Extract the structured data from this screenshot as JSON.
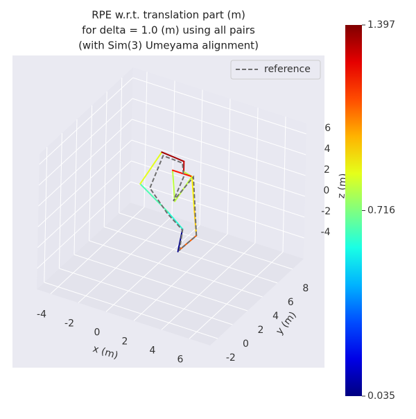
{
  "chart_data": {
    "type": "line3d",
    "title": [
      "RPE w.r.t. translation part (m)",
      "for delta = 1.0 (m) using all pairs",
      "(with Sim(3) Umeyama alignment)"
    ],
    "xlabel": "x (m)",
    "ylabel": "y (m)",
    "zlabel": "z (m)",
    "xlim": [
      -5,
      7.5
    ],
    "ylim": [
      -3,
      9.5
    ],
    "zlim": [
      -6,
      7
    ],
    "xticks": [
      -4,
      -2,
      0,
      2,
      4,
      6
    ],
    "yticks": [
      -2,
      0,
      2,
      4,
      6,
      8
    ],
    "zticks": [
      -4,
      -2,
      0,
      2,
      4,
      6
    ],
    "grid": true,
    "legend": "upper right",
    "series": [
      {
        "name": "reference",
        "color": "#6e6e6e",
        "style": "dashed",
        "x": [
          2.0,
          2.2,
          1.1,
          -0.2,
          0.7,
          2.1,
          2.2,
          1.5,
          2.9,
          3.2,
          2.0
        ],
        "y": [
          3,
          3,
          3,
          3,
          3,
          3,
          3,
          3,
          3,
          3,
          3
        ],
        "z": [
          -3.3,
          -1.2,
          -0.1,
          1.8,
          5.3,
          5.2,
          3.9,
          1.3,
          4.2,
          -1.3,
          -3.2
        ]
      },
      {
        "style": "solid",
        "x": [
          1.9,
          2.2,
          1.1,
          -0.9,
          0.6,
          2.2,
          2.2,
          2.8,
          1.6,
          1.4,
          2.8,
          3.0,
          3.2,
          2.0
        ],
        "y": [
          3,
          3,
          3,
          3,
          3,
          3,
          3,
          3,
          3,
          3,
          3,
          3,
          3,
          3
        ],
        "z": [
          -3.4,
          -1.1,
          0.1,
          1.9,
          5.6,
          5.4,
          4.4,
          4.2,
          1.3,
          4.2,
          4.2,
          1.3,
          -1.3,
          -3.2
        ],
        "errors": [
          0.05,
          0.6,
          0.65,
          0.85,
          1.35,
          1.3,
          0.8,
          0.8,
          0.8,
          1.2,
          0.9,
          0.95,
          1.1,
          1.1
        ]
      }
    ],
    "colorbar": {
      "cmap": "jet",
      "lim": [
        0.035,
        1.397
      ],
      "ticks": [
        0.035,
        0.716,
        1.397
      ]
    }
  }
}
